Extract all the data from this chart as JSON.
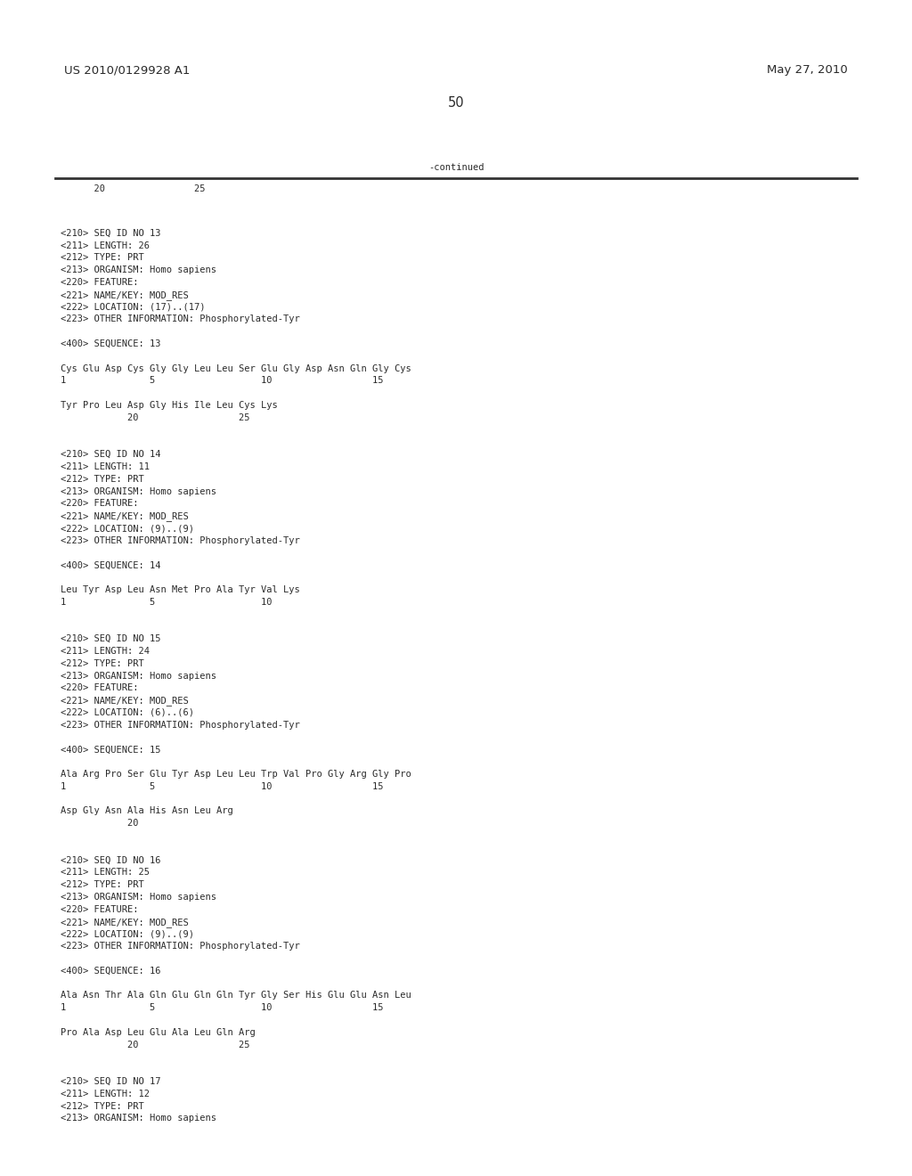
{
  "bg_color": "#ffffff",
  "top_left_text": "US 2010/0129928 A1",
  "top_right_text": "May 27, 2010",
  "page_number": "50",
  "continued_label": "-continued",
  "ruler_numbers_top": "      20                25",
  "content_lines": [
    "",
    "<210> SEQ ID NO 13",
    "<211> LENGTH: 26",
    "<212> TYPE: PRT",
    "<213> ORGANISM: Homo sapiens",
    "<220> FEATURE:",
    "<221> NAME/KEY: MOD_RES",
    "<222> LOCATION: (17)..(17)",
    "<223> OTHER INFORMATION: Phosphorylated-Tyr",
    "",
    "<400> SEQUENCE: 13",
    "",
    "Cys Glu Asp Cys Gly Gly Leu Leu Ser Glu Gly Asp Asn Gln Gly Cys",
    "1               5                   10                  15",
    "",
    "Tyr Pro Leu Asp Gly His Ile Leu Cys Lys",
    "            20                  25",
    "",
    "",
    "<210> SEQ ID NO 14",
    "<211> LENGTH: 11",
    "<212> TYPE: PRT",
    "<213> ORGANISM: Homo sapiens",
    "<220> FEATURE:",
    "<221> NAME/KEY: MOD_RES",
    "<222> LOCATION: (9)..(9)",
    "<223> OTHER INFORMATION: Phosphorylated-Tyr",
    "",
    "<400> SEQUENCE: 14",
    "",
    "Leu Tyr Asp Leu Asn Met Pro Ala Tyr Val Lys",
    "1               5                   10",
    "",
    "",
    "<210> SEQ ID NO 15",
    "<211> LENGTH: 24",
    "<212> TYPE: PRT",
    "<213> ORGANISM: Homo sapiens",
    "<220> FEATURE:",
    "<221> NAME/KEY: MOD_RES",
    "<222> LOCATION: (6)..(6)",
    "<223> OTHER INFORMATION: Phosphorylated-Tyr",
    "",
    "<400> SEQUENCE: 15",
    "",
    "Ala Arg Pro Ser Glu Tyr Asp Leu Leu Trp Val Pro Gly Arg Gly Pro",
    "1               5                   10                  15",
    "",
    "Asp Gly Asn Ala His Asn Leu Arg",
    "            20",
    "",
    "",
    "<210> SEQ ID NO 16",
    "<211> LENGTH: 25",
    "<212> TYPE: PRT",
    "<213> ORGANISM: Homo sapiens",
    "<220> FEATURE:",
    "<221> NAME/KEY: MOD_RES",
    "<222> LOCATION: (9)..(9)",
    "<223> OTHER INFORMATION: Phosphorylated-Tyr",
    "",
    "<400> SEQUENCE: 16",
    "",
    "Ala Asn Thr Ala Gln Glu Gln Gln Tyr Gly Ser His Glu Glu Asn Leu",
    "1               5                   10                  15",
    "",
    "Pro Ala Asp Leu Glu Ala Leu Gln Arg",
    "            20                  25",
    "",
    "",
    "<210> SEQ ID NO 17",
    "<211> LENGTH: 12",
    "<212> TYPE: PRT",
    "<213> ORGANISM: Homo sapiens"
  ],
  "font_size_header": 9.5,
  "font_size_content": 7.5,
  "font_size_page_num": 10.5,
  "text_color": "#2a2a2a",
  "line_color": "#333333"
}
